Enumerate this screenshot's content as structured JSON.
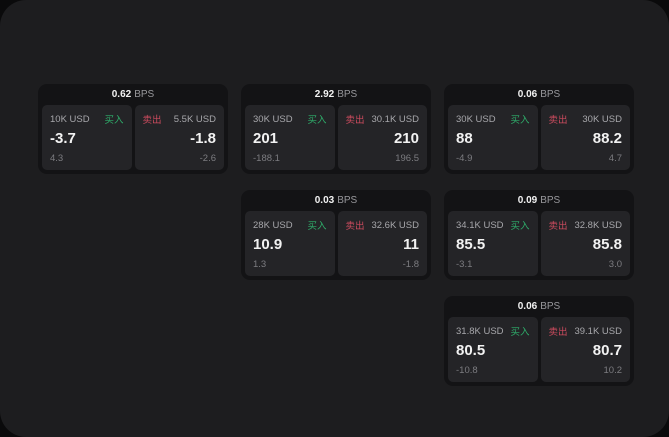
{
  "theme": {
    "outer_bg": "#0a0a0b",
    "app_bg": "#1d1d1f",
    "card_bg": "#131315",
    "panel_bg": "#242427",
    "accent_green": "#2fae6b",
    "accent_red": "#cc4b5e"
  },
  "labels": {
    "buy": "买入",
    "sell": "卖出",
    "bps": "BPS"
  },
  "cards": [
    {
      "bps": "0.62",
      "row": 1,
      "col": 1,
      "buy": {
        "size": "10K USD",
        "price": "-3.7",
        "delta": "4.3"
      },
      "sell": {
        "size": "5.5K USD",
        "price": "-1.8",
        "delta": "-2.6"
      }
    },
    {
      "bps": "2.92",
      "row": 1,
      "col": 2,
      "buy": {
        "size": "30K USD",
        "price": "201",
        "delta": "-188.1"
      },
      "sell": {
        "size": "30.1K USD",
        "price": "210",
        "delta": "196.5"
      }
    },
    {
      "bps": "0.06",
      "row": 1,
      "col": 3,
      "buy": {
        "size": "30K USD",
        "price": "88",
        "delta": "-4.9"
      },
      "sell": {
        "size": "30K USD",
        "price": "88.2",
        "delta": "4.7"
      }
    },
    {
      "bps": "0.03",
      "row": 2,
      "col": 2,
      "buy": {
        "size": "28K USD",
        "price": "10.9",
        "delta": "1.3"
      },
      "sell": {
        "size": "32.6K USD",
        "price": "11",
        "delta": "-1.8"
      }
    },
    {
      "bps": "0.09",
      "row": 2,
      "col": 3,
      "buy": {
        "size": "34.1K USD",
        "price": "85.5",
        "delta": "-3.1"
      },
      "sell": {
        "size": "32.8K USD",
        "price": "85.8",
        "delta": "3.0"
      }
    },
    {
      "bps": "0.06",
      "row": 3,
      "col": 3,
      "buy": {
        "size": "31.8K USD",
        "price": "80.5",
        "delta": "-10.8"
      },
      "sell": {
        "size": "39.1K USD",
        "price": "80.7",
        "delta": "10.2"
      }
    }
  ]
}
